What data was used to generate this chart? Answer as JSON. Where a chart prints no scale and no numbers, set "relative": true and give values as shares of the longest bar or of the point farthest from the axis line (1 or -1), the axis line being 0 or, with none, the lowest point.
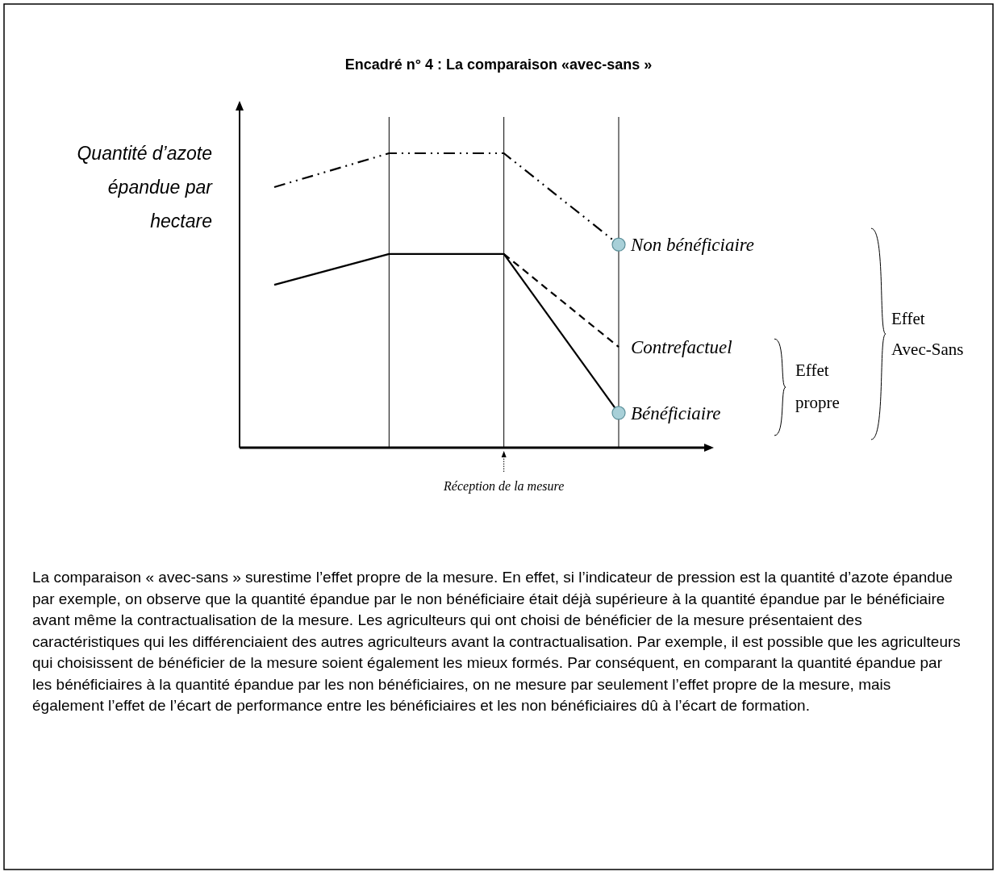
{
  "chart_data": {
    "type": "line",
    "title": "Encadré n° 4 : La comparaison «avec-sans »",
    "ylabel": "Quantité d’azote épandue par hectare",
    "relative": true,
    "categories": [
      null,
      null,
      null,
      null
    ],
    "series": [
      {
        "name": "Non bénéficiaire",
        "color": "#000000",
        "line_style": "dashdot",
        "values": [
          0.885,
          1,
          1,
          0.69
        ]
      },
      {
        "name": "Contrefactuel",
        "color": "#000000",
        "line_style": "dashed",
        "values": [
          null,
          null,
          0.658,
          0.342
        ]
      },
      {
        "name": "Bénéficiaire",
        "color": "#000000",
        "line_style": "solid",
        "values": [
          0.553,
          0.658,
          0.658,
          0.118
        ]
      }
    ],
    "grid": "x",
    "annotations": [
      "Réception de la mesure",
      "Effet propre",
      "Effet Avec-Sans",
      "La comparaison « avec-sans » surestime l’effet propre de la mesure. En effet, si l’indicateur de pression est la quantité d’azote épandue par exemple, on observe que la quantité épandue par le non bénéficiaire était déjà supérieure à la quantité épandue par le bénéficiaire avant même la contractualisation de la mesure. Les agriculteurs qui ont choisi de bénéficier de la mesure présentaient des caractéristiques qui les différenciaient des autres agriculteurs avant la contractualisation. Par exemple, il est possible que les agriculteurs qui choisissent de bénéficier de la mesure soient également les mieux formés. Par conséquent, en comparant la quantité épandue par les bénéficiaires à la quantité épandue par les non bénéficiaires, on ne mesure par seulement l’effet propre de la mesure, mais également l’effet de l’écart de performance entre les bénéficiaires et les non bénéficiaires dû à l’écart de formation."
    ]
  }
}
